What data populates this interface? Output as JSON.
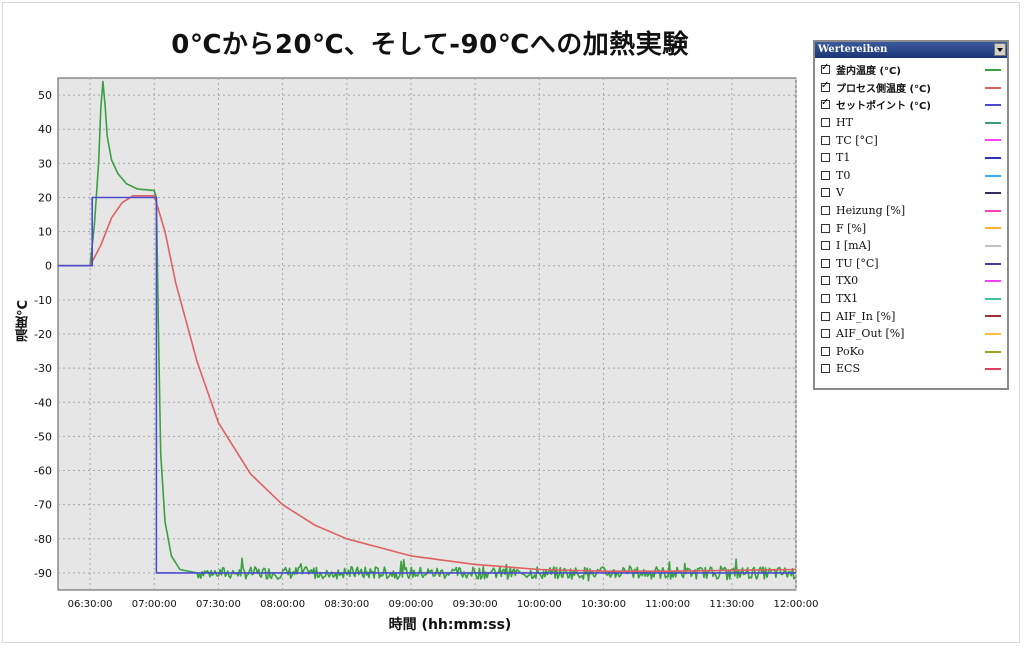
{
  "chart_data": {
    "type": "line",
    "title": "0℃から20℃、そして-90℃への加熱実験",
    "xlabel": "時間 (hh:mm:ss)",
    "ylabel": "温度°C",
    "x_range": [
      "06:15:00",
      "12:00:00"
    ],
    "ylim": [
      -95,
      55
    ],
    "x_ticks": [
      "06:30:00",
      "07:00:00",
      "07:30:00",
      "08:00:00",
      "08:30:00",
      "09:00:00",
      "09:30:00",
      "10:00:00",
      "10:30:00",
      "11:00:00",
      "11:30:00",
      "12:00:00"
    ],
    "y_ticks": [
      50,
      40,
      30,
      20,
      10,
      0,
      -10,
      -20,
      -30,
      -40,
      -50,
      -60,
      -70,
      -80,
      -90
    ],
    "grid": true,
    "legend_position": "right",
    "series": [
      {
        "name": "釜内温度 (°C)",
        "color": "#3aa040",
        "points": [
          [
            "06:15:00",
            0
          ],
          [
            "06:30:00",
            0
          ],
          [
            "06:32:00",
            12
          ],
          [
            "06:34:00",
            30
          ],
          [
            "06:35:00",
            46
          ],
          [
            "06:36:00",
            54
          ],
          [
            "06:37:00",
            47
          ],
          [
            "06:38:00",
            38
          ],
          [
            "06:40:00",
            31
          ],
          [
            "06:43:00",
            27
          ],
          [
            "06:47:00",
            24
          ],
          [
            "06:52:00",
            22.5
          ],
          [
            "07:00:00",
            22
          ],
          [
            "07:01:00",
            20
          ],
          [
            "07:02:00",
            -20
          ],
          [
            "07:03:00",
            -55
          ],
          [
            "07:05:00",
            -75
          ],
          [
            "07:08:00",
            -85
          ],
          [
            "07:12:00",
            -89
          ],
          [
            "07:20:00",
            -90
          ],
          [
            "12:00:00",
            -90
          ]
        ],
        "noise_after": "07:20:00",
        "noise_amplitude": 3
      },
      {
        "name": "プロセス側温度 (°C)",
        "color": "#e06060",
        "points": [
          [
            "06:15:00",
            0
          ],
          [
            "06:30:00",
            0
          ],
          [
            "06:35:00",
            6
          ],
          [
            "06:40:00",
            14
          ],
          [
            "06:45:00",
            18.5
          ],
          [
            "06:50:00",
            20.5
          ],
          [
            "07:00:00",
            20.5
          ],
          [
            "07:05:00",
            10
          ],
          [
            "07:10:00",
            -5
          ],
          [
            "07:20:00",
            -28
          ],
          [
            "07:30:00",
            -46
          ],
          [
            "07:45:00",
            -61
          ],
          [
            "08:00:00",
            -70
          ],
          [
            "08:15:00",
            -76
          ],
          [
            "08:30:00",
            -80
          ],
          [
            "09:00:00",
            -85
          ],
          [
            "09:30:00",
            -87.5
          ],
          [
            "10:00:00",
            -89
          ],
          [
            "10:30:00",
            -89.5
          ],
          [
            "11:00:00",
            -89.5
          ],
          [
            "12:00:00",
            -89
          ]
        ]
      },
      {
        "name": "セットポイント (°C)",
        "color": "#4b4bd0",
        "points": [
          [
            "06:15:00",
            0
          ],
          [
            "06:31:00",
            0
          ],
          [
            "06:31:00",
            20
          ],
          [
            "07:01:00",
            20
          ],
          [
            "07:01:00",
            -90
          ],
          [
            "12:00:00",
            -90
          ]
        ]
      }
    ]
  },
  "legend": {
    "header": "Wertereihen",
    "items": [
      {
        "label": "釜内温度 (°C)",
        "checked": true,
        "bold": true,
        "color": "#3aa040"
      },
      {
        "label": "プロセス側温度 (°C)",
        "checked": true,
        "bold": true,
        "color": "#e06060"
      },
      {
        "label": "セットポイント (°C)",
        "checked": true,
        "bold": true,
        "color": "#4b4bd0"
      },
      {
        "label": "HT",
        "checked": false,
        "bold": false,
        "color": "#3aa070"
      },
      {
        "label": "TC [°C]",
        "checked": false,
        "bold": false,
        "color": "#ff40ff"
      },
      {
        "label": "T1",
        "checked": false,
        "bold": false,
        "color": "#3030c0"
      },
      {
        "label": "T0",
        "checked": false,
        "bold": false,
        "color": "#30b0ff"
      },
      {
        "label": "V",
        "checked": false,
        "bold": false,
        "color": "#303060"
      },
      {
        "label": "Heizung [%]",
        "checked": false,
        "bold": false,
        "color": "#ff40c0"
      },
      {
        "label": "F [%]",
        "checked": false,
        "bold": false,
        "color": "#ffb030"
      },
      {
        "label": "I [mA]",
        "checked": false,
        "bold": false,
        "color": "#c0c0c0"
      },
      {
        "label": "TU [°C]",
        "checked": false,
        "bold": false,
        "color": "#4040a0"
      },
      {
        "label": "TX0",
        "checked": false,
        "bold": false,
        "color": "#ff40ff"
      },
      {
        "label": "TX1",
        "checked": false,
        "bold": false,
        "color": "#40c0a0"
      },
      {
        "label": "AIF_In [%]",
        "checked": false,
        "bold": false,
        "color": "#a03030"
      },
      {
        "label": "AIF_Out [%]",
        "checked": false,
        "bold": false,
        "color": "#ffc040"
      },
      {
        "label": "PoKo",
        "checked": false,
        "bold": false,
        "color": "#a0a020"
      },
      {
        "label": "ECS",
        "checked": false,
        "bold": false,
        "color": "#e04060"
      }
    ]
  }
}
